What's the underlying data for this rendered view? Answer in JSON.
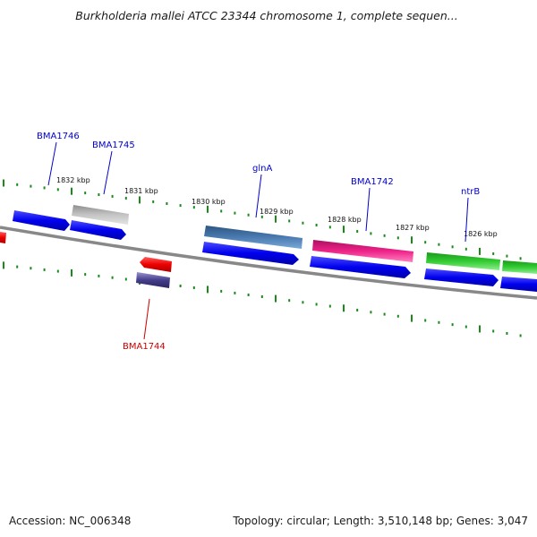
{
  "header": {
    "title": "Burkholderia mallei ATCC 23344 chromosome 1, complete sequen..."
  },
  "footer": {
    "accession": "Accession: NC_006348",
    "topology": "Topology: circular; Length: 3,510,148 bp; Genes: 3,047"
  },
  "map": {
    "scale_labels": [
      "1832 kbp",
      "1831 kbp",
      "1830 kbp",
      "1829 kbp",
      "1828 kbp",
      "1827 kbp",
      "1826 kbp"
    ],
    "gene_labels": [
      {
        "text": "BMA1746",
        "color": "#0000cc"
      },
      {
        "text": "BMA1745",
        "color": "#0000cc"
      },
      {
        "text": "glnA",
        "color": "#0000cc"
      },
      {
        "text": "BMA1742",
        "color": "#0000cc"
      },
      {
        "text": "ntrB",
        "color": "#0000cc"
      },
      {
        "text": "BMA1744",
        "color": "#cc0000"
      }
    ],
    "colors": {
      "backbone": "#888888",
      "tick": "#1a8a1a",
      "cds": "#0000ee",
      "reverse_gene": "#ee0000",
      "grey_gene": "#b4b4b4",
      "steelblue_gene": "#4a7ab0",
      "pink_gene": "#ee2288",
      "green_gene": "#33cc33",
      "purple_gene": "#443d8b"
    }
  }
}
